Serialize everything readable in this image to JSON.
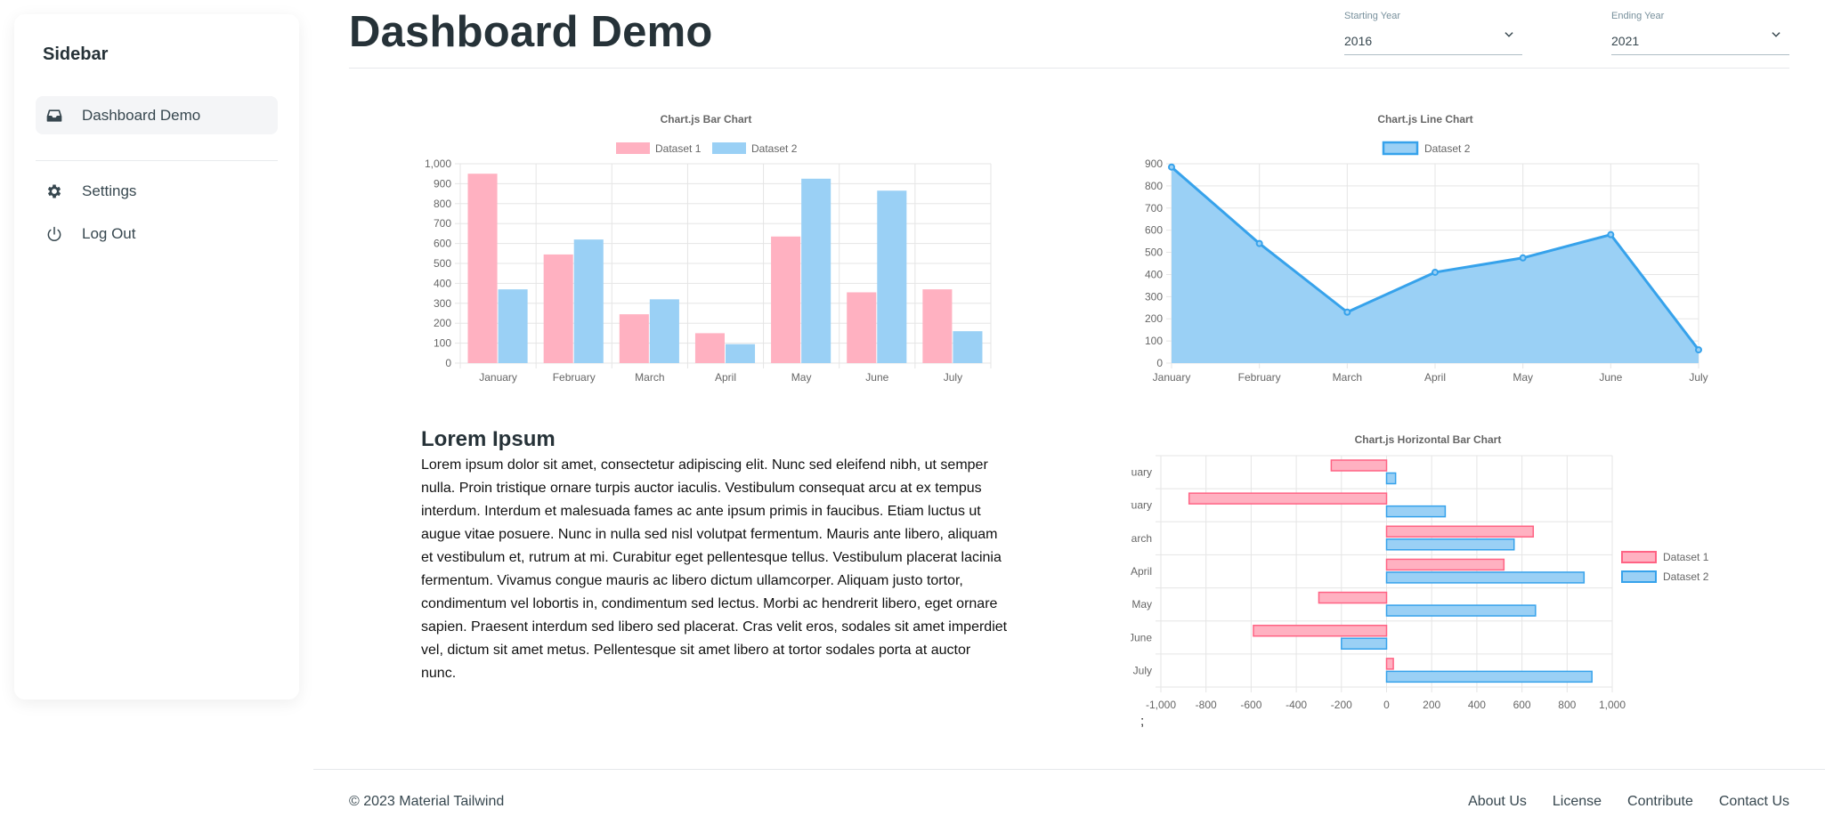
{
  "sidebar": {
    "title": "Sidebar",
    "items": [
      {
        "label": "Dashboard Demo",
        "icon": "inbox-icon"
      },
      {
        "label": "Settings",
        "icon": "gear-icon"
      },
      {
        "label": "Log Out",
        "icon": "power-icon"
      }
    ]
  },
  "header": {
    "title": "Dashboard Demo",
    "starting_year": {
      "label": "Starting Year",
      "value": "2016"
    },
    "ending_year": {
      "label": "Ending Year",
      "value": "2021"
    }
  },
  "colors": {
    "pink": "#ff6384",
    "blue": "#36a2eb",
    "pink_fill": "#ffb1c1",
    "blue_fill": "#9ad0f5"
  },
  "chart_data": [
    {
      "type": "bar",
      "title": "Chart.js Bar Chart",
      "categories": [
        "January",
        "February",
        "March",
        "April",
        "May",
        "June",
        "July"
      ],
      "series": [
        {
          "name": "Dataset 1",
          "values": [
            950,
            545,
            245,
            150,
            635,
            355,
            370
          ]
        },
        {
          "name": "Dataset 2",
          "values": [
            370,
            620,
            320,
            95,
            925,
            865,
            160
          ]
        }
      ],
      "ylim": [
        0,
        1000
      ],
      "yticks": [
        "0",
        "100",
        "200",
        "300",
        "400",
        "500",
        "600",
        "700",
        "800",
        "900",
        "1,000"
      ],
      "legend": "top",
      "grid": true
    },
    {
      "type": "area",
      "title": "Chart.js Line Chart",
      "categories": [
        "January",
        "February",
        "March",
        "April",
        "May",
        "June",
        "July"
      ],
      "series": [
        {
          "name": "Dataset 2",
          "values": [
            885,
            540,
            230,
            410,
            475,
            580,
            60
          ]
        }
      ],
      "ylim": [
        0,
        900
      ],
      "yticks": [
        "0",
        "100",
        "200",
        "300",
        "400",
        "500",
        "600",
        "700",
        "800",
        "900"
      ],
      "legend": "top",
      "grid": true
    },
    {
      "type": "bar",
      "orientation": "horizontal",
      "title": "Chart.js Horizontal Bar Chart",
      "categories": [
        "January",
        "February",
        "March",
        "April",
        "May",
        "June",
        "July"
      ],
      "series": [
        {
          "name": "Dataset 1",
          "values": [
            -245,
            -875,
            650,
            520,
            -300,
            -590,
            30
          ]
        },
        {
          "name": "Dataset 2",
          "values": [
            40,
            260,
            565,
            875,
            660,
            -200,
            910
          ]
        }
      ],
      "xlim": [
        -1000,
        1000
      ],
      "xticks": [
        "-1,000",
        "-800",
        "-600",
        "-400",
        "-200",
        "0",
        "200",
        "400",
        "600",
        "800",
        "1,000"
      ],
      "legend": "right",
      "grid": true
    }
  ],
  "article": {
    "heading": "Lorem Ipsum",
    "body": "Lorem ipsum dolor sit amet, consectetur adipiscing elit. Nunc sed eleifend nibh, ut semper nulla. Proin tristique ornare turpis auctor iaculis. Vestibulum consequat arcu at ex tempus interdum. Interdum et malesuada fames ac ante ipsum primis in faucibus. Etiam luctus ut augue vitae posuere. Nunc in nulla sed nisl volutpat fermentum. Mauris ante libero, aliquam et vestibulum et, rutrum at mi. Curabitur eget pellentesque tellus. Vestibulum placerat lacinia fermentum. Vivamus congue mauris ac libero dictum ullamcorper. Aliquam justo tortor, condimentum vel lobortis in, condimentum sed lectus. Morbi ac hendrerit libero, eget ornare sapien. Praesent interdum sed libero sed placerat. Cras velit eros, sodales sit amet imperdiet vel, dictum sit amet metus. Pellentesque sit amet libero at tortor sodales porta at auctor nunc."
  },
  "stray_text": ";",
  "footer": {
    "copyright": "© 2023 Material Tailwind",
    "links": [
      "About Us",
      "License",
      "Contribute",
      "Contact Us"
    ]
  }
}
